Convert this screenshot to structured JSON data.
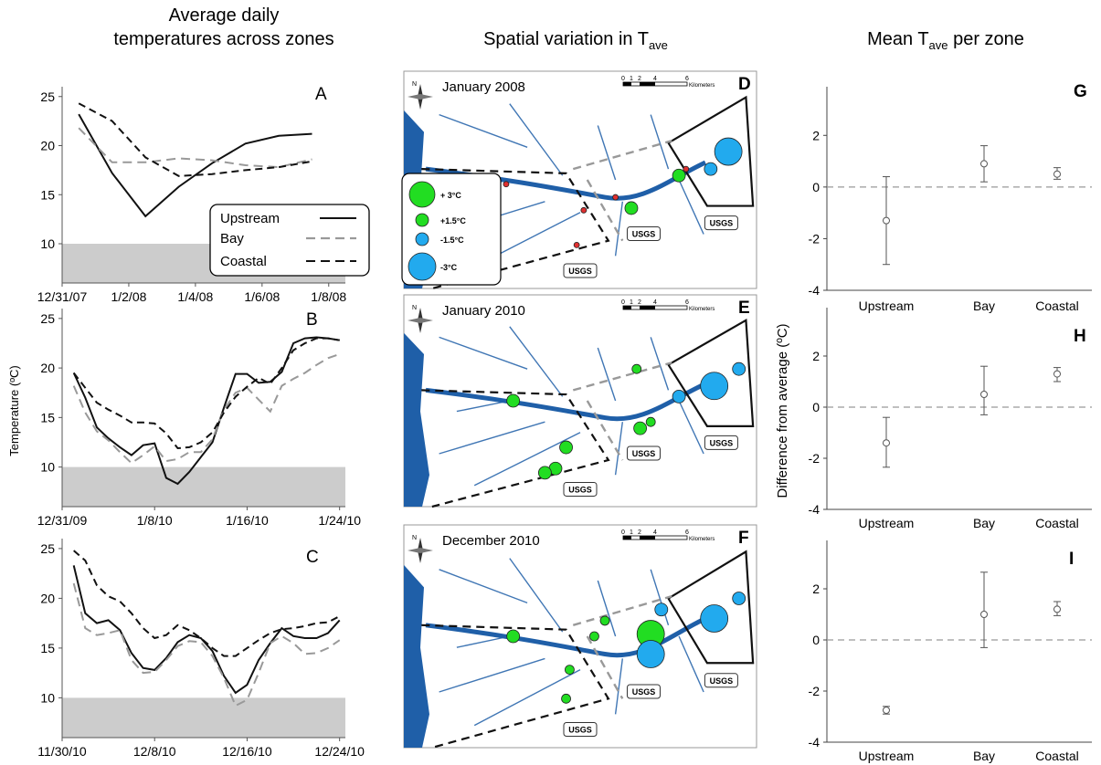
{
  "titles": {
    "col1_line1": "Average daily",
    "col1_line2": "temperatures across zones",
    "col2_main": "Spatial variation in  T",
    "col2_sub": "ave",
    "col3_main": "Mean T",
    "col3_sub": "ave",
    "col3_tail": " per zone"
  },
  "colors": {
    "upstream": "#111111",
    "bay": "#999999",
    "coastal": "#111111",
    "shade": "#cccccc",
    "water": "#1f5fa8",
    "land": "#ffffff",
    "green": "#22dd22",
    "blue": "#22aaee"
  },
  "ts_ylabel": "Temperature (ºC)",
  "diff_ylabel": "Difference from average (ºC)",
  "legend": {
    "upstream": "Upstream",
    "bay": "Bay",
    "coastal": "Coastal"
  },
  "chart_data": [
    {
      "panel": "A",
      "type": "line",
      "threshold_shade_below": 10,
      "ylim": [
        6,
        26
      ],
      "yticks": [
        10,
        15,
        20,
        25
      ],
      "xticks": [
        "12/31/07",
        "1/2/08",
        "1/4/08",
        "1/6/08",
        "1/8/08"
      ],
      "xlim": [
        0,
        8.5
      ],
      "series": [
        {
          "name": "Upstream",
          "x": [
            0.5,
            1.5,
            2.5,
            3.5,
            4.5,
            5.5,
            6.5,
            7.5
          ],
          "y": [
            23.2,
            17.2,
            12.8,
            15.8,
            18.2,
            20.2,
            21.0,
            21.2
          ]
        },
        {
          "name": "Bay",
          "x": [
            0.5,
            1.5,
            2.5,
            3.5,
            4.5,
            5.5,
            6.5,
            7.5
          ],
          "y": [
            21.8,
            18.3,
            18.3,
            18.7,
            18.5,
            18.0,
            17.8,
            18.6
          ]
        },
        {
          "name": "Coastal",
          "x": [
            0.5,
            1.5,
            2.5,
            3.5,
            4.5,
            5.5,
            6.5,
            7.5
          ],
          "y": [
            24.3,
            22.5,
            18.8,
            16.9,
            17.1,
            17.5,
            17.8,
            18.4
          ]
        }
      ]
    },
    {
      "panel": "B",
      "type": "line",
      "threshold_shade_below": 10,
      "ylim": [
        6,
        26
      ],
      "yticks": [
        10,
        15,
        20,
        25
      ],
      "xticks": [
        "12/31/09",
        "1/8/10",
        "1/16/10",
        "1/24/10"
      ],
      "xlim": [
        0,
        24.5
      ],
      "series": [
        {
          "name": "Upstream",
          "x": [
            1,
            2,
            3,
            4,
            5,
            6,
            7,
            8,
            9,
            10,
            11,
            12,
            13,
            14,
            15,
            16,
            17,
            18,
            19,
            20,
            21,
            22,
            23,
            24
          ],
          "y": [
            19.5,
            17.0,
            14.0,
            12.9,
            12.0,
            11.2,
            12.2,
            12.4,
            8.9,
            8.3,
            9.5,
            11.0,
            12.5,
            16.0,
            19.4,
            19.4,
            18.5,
            18.6,
            19.6,
            22.5,
            23.0,
            23.1,
            23.0,
            22.8
          ]
        },
        {
          "name": "Bay",
          "x": [
            1,
            2,
            3,
            4,
            5,
            6,
            7,
            8,
            9,
            10,
            11,
            12,
            13,
            14,
            15,
            16,
            17,
            18,
            19,
            20,
            21,
            22,
            23,
            24
          ],
          "y": [
            18.2,
            15.5,
            13.6,
            12.7,
            11.5,
            10.4,
            11.2,
            12.1,
            10.6,
            10.8,
            11.5,
            11.5,
            12.8,
            15.8,
            17.5,
            18.0,
            16.8,
            15.6,
            18.2,
            18.9,
            19.5,
            20.3,
            21.0,
            21.4
          ]
        },
        {
          "name": "Coastal",
          "x": [
            1,
            2,
            3,
            4,
            5,
            6,
            7,
            8,
            9,
            10,
            11,
            12,
            13,
            14,
            15,
            16,
            17,
            18,
            19,
            20,
            21,
            22,
            23,
            24
          ],
          "y": [
            19.5,
            18.0,
            16.5,
            15.8,
            15.2,
            14.5,
            14.5,
            14.4,
            13.4,
            11.9,
            12.0,
            12.5,
            13.5,
            15.5,
            17.1,
            18.1,
            19.0,
            18.4,
            20.0,
            21.8,
            22.5,
            23.0,
            23.0,
            22.8
          ]
        }
      ]
    },
    {
      "panel": "C",
      "type": "line",
      "threshold_shade_below": 10,
      "ylim": [
        6,
        26
      ],
      "yticks": [
        10,
        15,
        20,
        25
      ],
      "xticks": [
        "11/30/10",
        "12/8/10",
        "12/16/10",
        "12/24/10"
      ],
      "xlim": [
        0,
        24.5
      ],
      "series": [
        {
          "name": "Upstream",
          "x": [
            1,
            2,
            3,
            4,
            5,
            6,
            7,
            8,
            9,
            10,
            11,
            12,
            13,
            14,
            15,
            16,
            17,
            18,
            19,
            20,
            21,
            22,
            23,
            24
          ],
          "y": [
            23.3,
            18.5,
            17.5,
            17.8,
            16.8,
            14.5,
            13.0,
            12.8,
            14.0,
            15.6,
            16.3,
            16.0,
            14.7,
            12.2,
            10.5,
            11.3,
            13.8,
            15.5,
            17.0,
            16.2,
            16.0,
            16.0,
            16.5,
            17.8
          ]
        },
        {
          "name": "Bay",
          "x": [
            1,
            2,
            3,
            4,
            5,
            6,
            7,
            8,
            9,
            10,
            11,
            12,
            13,
            14,
            15,
            16,
            17,
            18,
            19,
            20,
            21,
            22,
            23,
            24
          ],
          "y": [
            21.5,
            17.0,
            16.3,
            16.5,
            16.8,
            13.8,
            12.5,
            12.6,
            13.8,
            15.2,
            15.7,
            15.6,
            14.2,
            12.0,
            9.2,
            9.8,
            12.5,
            15.5,
            16.2,
            15.5,
            14.4,
            14.5,
            15.0,
            15.8
          ]
        },
        {
          "name": "Coastal",
          "x": [
            1,
            2,
            3,
            4,
            5,
            6,
            7,
            8,
            9,
            10,
            11,
            12,
            13,
            14,
            15,
            16,
            17,
            18,
            19,
            20,
            21,
            22,
            23,
            24
          ],
          "y": [
            24.8,
            23.8,
            21.3,
            20.2,
            19.7,
            18.5,
            17.0,
            16.0,
            16.3,
            17.3,
            16.8,
            16.0,
            15.0,
            14.2,
            14.2,
            15.0,
            15.8,
            16.5,
            16.9,
            17.0,
            17.2,
            17.5,
            17.6,
            18.2
          ]
        }
      ]
    },
    {
      "panel": "G",
      "type": "scatter",
      "error_bars": true,
      "ylim": [
        -4,
        3
      ],
      "yticks": [
        -4,
        -2,
        0,
        2
      ],
      "categories": [
        "Upstream",
        "Bay",
        "Coastal"
      ],
      "values": [
        -1.3,
        0.9,
        0.5
      ],
      "lower": [
        -3.0,
        0.2,
        0.3
      ],
      "upper": [
        0.4,
        1.6,
        0.75
      ],
      "reference_line": 0
    },
    {
      "panel": "H",
      "type": "scatter",
      "error_bars": true,
      "ylim": [
        -4,
        3
      ],
      "yticks": [
        -4,
        -2,
        0,
        2
      ],
      "categories": [
        "Upstream",
        "Bay",
        "Coastal"
      ],
      "values": [
        -1.4,
        0.5,
        1.3
      ],
      "lower": [
        -2.35,
        -0.3,
        1.0
      ],
      "upper": [
        -0.4,
        1.6,
        1.55
      ],
      "reference_line": 0
    },
    {
      "panel": "I",
      "type": "scatter",
      "error_bars": true,
      "ylim": [
        -4,
        3
      ],
      "yticks": [
        -4,
        -2,
        0,
        2
      ],
      "categories": [
        "Upstream",
        "Bay",
        "Coastal"
      ],
      "values": [
        -2.75,
        1.0,
        1.2
      ],
      "lower": [
        -2.9,
        -0.3,
        0.95
      ],
      "upper": [
        -2.6,
        2.65,
        1.5
      ],
      "reference_line": 0
    }
  ],
  "maps": [
    {
      "panel": "D",
      "month": "January 2008",
      "usgs_count": 3
    },
    {
      "panel": "E",
      "month": "January 2010",
      "usgs_count": 3
    },
    {
      "panel": "F",
      "month": "December 2010",
      "usgs_count": 3
    }
  ],
  "map_common": {
    "scale_labels": [
      "0",
      "1",
      "2",
      "4",
      "6"
    ],
    "scale_unit": "Kilometers",
    "compass_letter": "N",
    "usgs_label": "USGS"
  },
  "size_legend": [
    {
      "label": "+ 3°C",
      "color": "green",
      "magnitude": 3
    },
    {
      "label": "+1.5°C",
      "color": "green",
      "magnitude": 1.5
    },
    {
      "label": "-1.5°C",
      "color": "blue",
      "magnitude": 1.5
    },
    {
      "label": "-3°C",
      "color": "blue",
      "magnitude": 3
    }
  ]
}
